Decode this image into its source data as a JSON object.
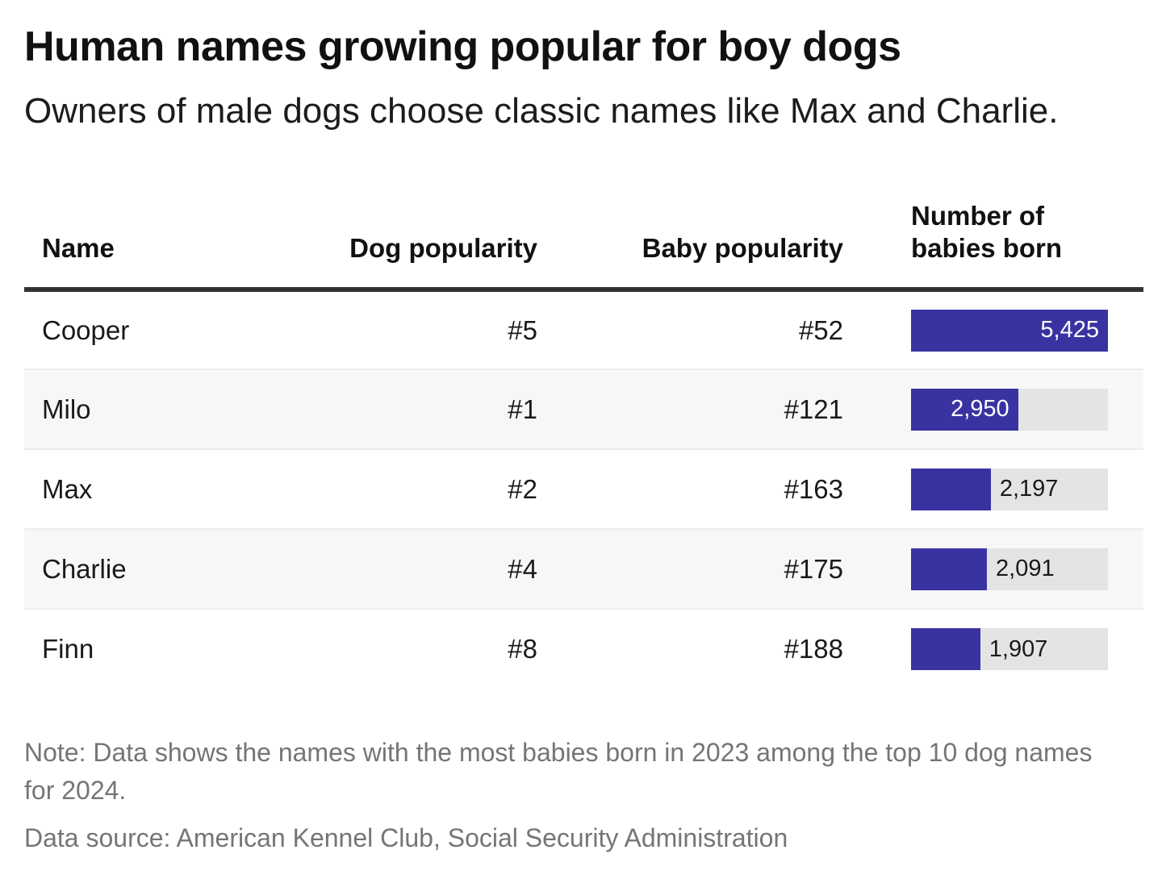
{
  "header": {
    "title": "Human names growing popular for boy dogs",
    "subtitle": "Owners of male dogs choose classic names like Max and Charlie."
  },
  "table": {
    "columns": [
      {
        "label": "Name",
        "align": "left"
      },
      {
        "label": "Dog popularity",
        "align": "right"
      },
      {
        "label": "Baby popularity",
        "align": "right"
      },
      {
        "label": "Number of babies born",
        "align": "left"
      }
    ],
    "bar_max": 5425,
    "rows": [
      {
        "name": "Cooper",
        "dog_rank": "#5",
        "baby_rank": "#52",
        "babies_born": 5425,
        "babies_born_label": "5,425",
        "label_position": "inside"
      },
      {
        "name": "Milo",
        "dog_rank": "#1",
        "baby_rank": "#121",
        "babies_born": 2950,
        "babies_born_label": "2,950",
        "label_position": "inside"
      },
      {
        "name": "Max",
        "dog_rank": "#2",
        "baby_rank": "#163",
        "babies_born": 2197,
        "babies_born_label": "2,197",
        "label_position": "outside"
      },
      {
        "name": "Charlie",
        "dog_rank": "#4",
        "baby_rank": "#175",
        "babies_born": 2091,
        "babies_born_label": "2,091",
        "label_position": "outside"
      },
      {
        "name": "Finn",
        "dog_rank": "#8",
        "baby_rank": "#188",
        "babies_born": 1907,
        "babies_born_label": "1,907",
        "label_position": "outside"
      }
    ]
  },
  "colors": {
    "bar_fill": "#3933a2",
    "bar_track": "#e4e4e4",
    "row_alt_background": "#f7f7f7",
    "header_rule": "#333333",
    "text": "#1a1a1a",
    "note_text": "#757575",
    "bar_label_inside": "#ffffff"
  },
  "footer": {
    "note": "Note: Data shows the names with the most babies born in 2023 among the top 10 dog names for 2024.",
    "source": "Data source: American Kennel Club, Social Security Administration"
  },
  "chart_data": {
    "type": "bar",
    "orientation": "horizontal",
    "title": "Human names growing popular for boy dogs",
    "subtitle": "Owners of male dogs choose classic names like Max and Charlie.",
    "categories": [
      "Cooper",
      "Milo",
      "Max",
      "Charlie",
      "Finn"
    ],
    "series": [
      {
        "name": "Dog popularity rank",
        "values": [
          5,
          1,
          2,
          4,
          8
        ]
      },
      {
        "name": "Baby popularity rank",
        "values": [
          52,
          121,
          163,
          175,
          188
        ]
      },
      {
        "name": "Number of babies born",
        "values": [
          5425,
          2950,
          2197,
          2091,
          1907
        ]
      }
    ],
    "xlim": [
      0,
      5425
    ],
    "grid": false,
    "legend_position": "none",
    "annotations": [
      "Note: Data shows the names with the most babies born in 2023 among the top 10 dog names for 2024.",
      "Data source: American Kennel Club, Social Security Administration"
    ]
  }
}
